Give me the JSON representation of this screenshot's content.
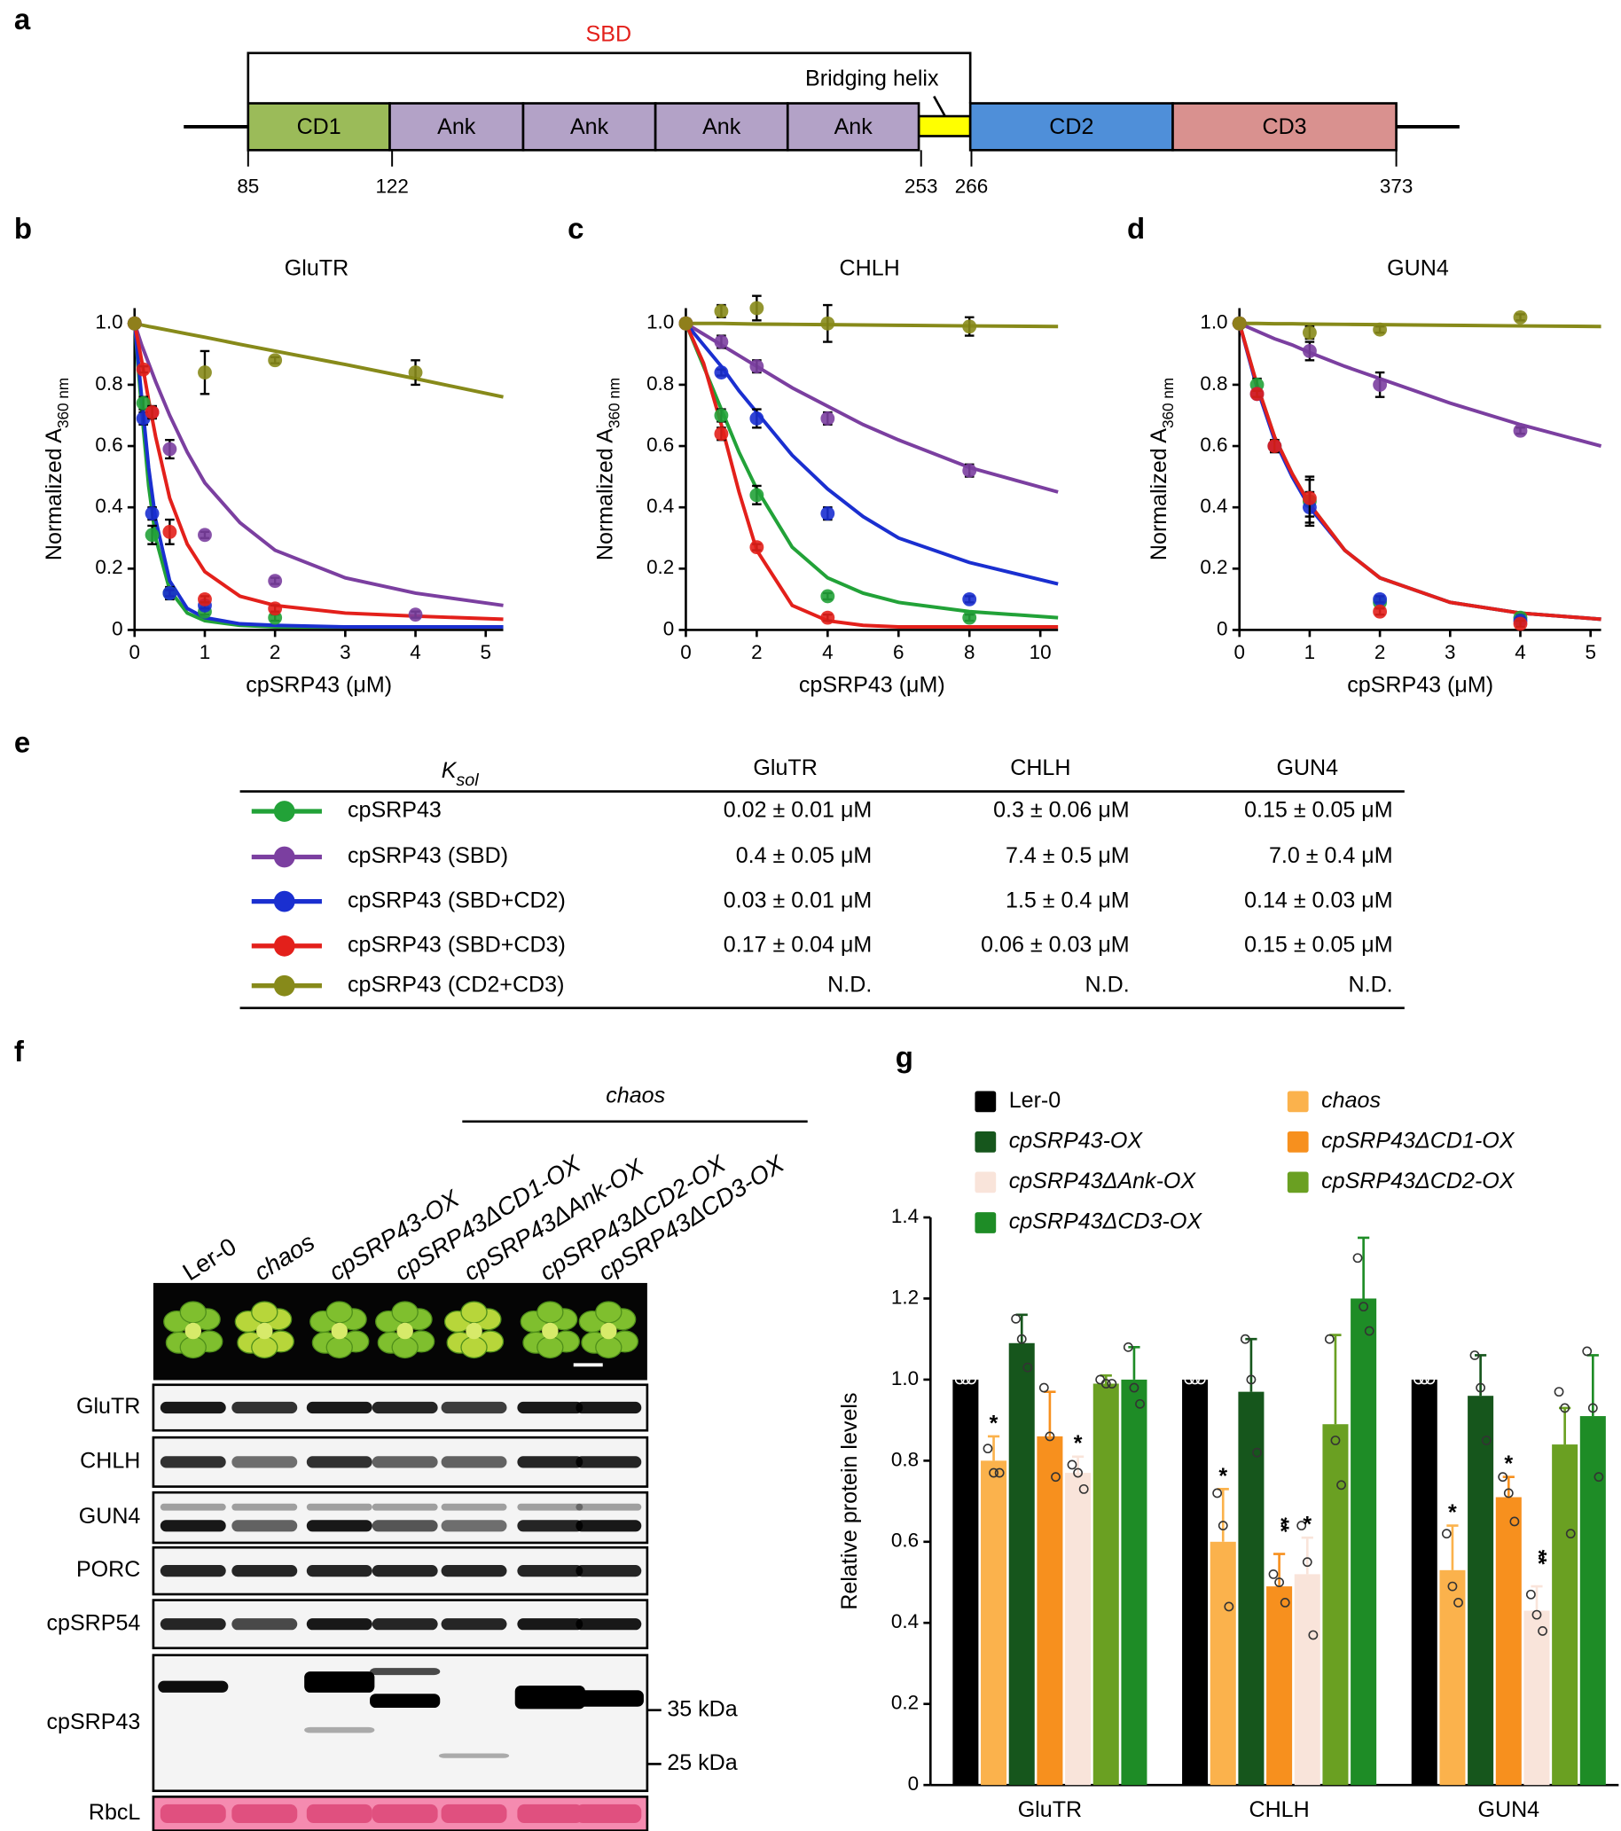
{
  "panel_labels": [
    "a",
    "b",
    "c",
    "d",
    "e",
    "f",
    "g"
  ],
  "domain_diagram": {
    "region_label": "SBD",
    "helix_label": "Bridging helix",
    "domains": [
      "CD1",
      "Ank",
      "Ank",
      "Ank",
      "Ank",
      "CD2",
      "CD3"
    ],
    "positions": [
      85,
      122,
      253,
      266,
      373
    ]
  },
  "chart_data": [
    {
      "type": "scatter",
      "title": "GluTR",
      "x_label": "cpSRP43 (μM)",
      "y_label": {
        "text": "Normalized A",
        "subscript": "360 nm"
      },
      "xlim": [
        0,
        5.25
      ],
      "ylim": [
        0,
        1.05
      ],
      "xticks": [
        0,
        1,
        2,
        3,
        4,
        5
      ],
      "yticks": [
        0,
        0.2,
        0.4,
        0.6,
        0.8,
        {
          "value": 1,
          "label": "1.0"
        }
      ],
      "fit_x": [
        0,
        0.1,
        0.2,
        0.3,
        0.5,
        0.75,
        1,
        1.5,
        2,
        3,
        4,
        5.25
      ],
      "series": [
        {
          "color": "#22a238",
          "x": [
            0,
            0.125,
            0.25,
            0.5,
            1,
            2
          ],
          "values": [
            1,
            0.74,
            0.31,
            0.12,
            0.06,
            0.04
          ],
          "errors": [
            0,
            0.02,
            0.03,
            0.02,
            0.01,
            0.01
          ],
          "fit": [
            1,
            0.72,
            0.47,
            0.3,
            0.13,
            0.055,
            0.03,
            0.015,
            0.01,
            0.01,
            0.01,
            0.01
          ]
        },
        {
          "color": "#7b3fa0",
          "x": [
            0,
            0.25,
            0.5,
            1,
            2,
            4
          ],
          "values": [
            1,
            0.71,
            0.59,
            0.31,
            0.16,
            0.05
          ],
          "errors": [
            0,
            0.02,
            0.03,
            0.01,
            0.01,
            0.01
          ],
          "fit": [
            1,
            0.93,
            0.87,
            0.81,
            0.7,
            0.58,
            0.48,
            0.35,
            0.26,
            0.17,
            0.12,
            0.08
          ]
        },
        {
          "color": "#1a2fd0",
          "x": [
            0,
            0.125,
            0.25,
            0.5,
            1
          ],
          "values": [
            1,
            0.69,
            0.38,
            0.12,
            0.08
          ],
          "errors": [
            0,
            0.02,
            0.02,
            0.01,
            0.01
          ],
          "fit": [
            1,
            0.76,
            0.53,
            0.36,
            0.16,
            0.07,
            0.04,
            0.02,
            0.015,
            0.01,
            0.01,
            0.01
          ]
        },
        {
          "color": "#e3201b",
          "x": [
            0,
            0.125,
            0.25,
            0.5,
            1,
            2
          ],
          "values": [
            1,
            0.85,
            0.71,
            0.32,
            0.1,
            0.07
          ],
          "errors": [
            0,
            0.01,
            0.02,
            0.04,
            0.01,
            0.01
          ],
          "fit": [
            1,
            0.88,
            0.75,
            0.63,
            0.43,
            0.28,
            0.19,
            0.11,
            0.08,
            0.055,
            0.045,
            0.035
          ]
        },
        {
          "color": "#878a1a",
          "x": [
            0,
            1,
            2,
            4
          ],
          "values": [
            1,
            0.84,
            0.88,
            0.84
          ],
          "errors": [
            0,
            0.07,
            0.01,
            0.04
          ],
          "fit": [
            1,
            0.995,
            0.99,
            0.986,
            0.977,
            0.966,
            0.955,
            0.932,
            0.91,
            0.866,
            0.82,
            0.76
          ]
        }
      ]
    },
    {
      "type": "scatter",
      "title": "CHLH",
      "x_label": "cpSRP43 (μM)",
      "y_label": {
        "text": "Normalized A",
        "subscript": "360 nm"
      },
      "xlim": [
        0,
        10.5
      ],
      "ylim": [
        0,
        1.05
      ],
      "xticks": [
        0,
        2,
        4,
        6,
        8,
        10
      ],
      "yticks": [
        0,
        0.2,
        0.4,
        0.6,
        0.8,
        {
          "value": 1,
          "label": "1.0"
        }
      ],
      "fit_x": [
        0,
        0.5,
        1,
        1.5,
        2,
        3,
        4,
        5,
        6,
        8,
        10.5
      ],
      "series": [
        {
          "color": "#22a238",
          "x": [
            0,
            1,
            2,
            4,
            8
          ],
          "values": [
            1,
            0.7,
            0.44,
            0.11,
            0.04
          ],
          "errors": [
            0,
            0.02,
            0.03,
            0.01,
            0.01
          ],
          "fit": [
            1,
            0.86,
            0.72,
            0.58,
            0.46,
            0.27,
            0.17,
            0.12,
            0.09,
            0.06,
            0.04
          ]
        },
        {
          "color": "#7b3fa0",
          "x": [
            0,
            1,
            2,
            4,
            8
          ],
          "values": [
            1,
            0.94,
            0.86,
            0.69,
            0.52
          ],
          "errors": [
            0,
            0.02,
            0.02,
            0.02,
            0.02
          ],
          "fit": [
            1,
            0.965,
            0.93,
            0.895,
            0.86,
            0.79,
            0.73,
            0.67,
            0.62,
            0.53,
            0.45
          ]
        },
        {
          "color": "#1a2fd0",
          "x": [
            0,
            1,
            2,
            4,
            8
          ],
          "values": [
            1,
            0.84,
            0.69,
            0.38,
            0.1
          ],
          "errors": [
            0,
            0.01,
            0.03,
            0.02,
            0.01
          ],
          "fit": [
            1,
            0.93,
            0.86,
            0.78,
            0.71,
            0.57,
            0.46,
            0.37,
            0.3,
            0.22,
            0.15
          ]
        },
        {
          "color": "#e3201b",
          "x": [
            0,
            1,
            2,
            4
          ],
          "values": [
            1,
            0.64,
            0.27,
            0.04
          ],
          "errors": [
            0,
            0.02,
            0.01,
            0.01
          ],
          "fit": [
            1,
            0.87,
            0.67,
            0.45,
            0.26,
            0.08,
            0.03,
            0.015,
            0.01,
            0.01,
            0.01
          ]
        },
        {
          "color": "#878a1a",
          "x": [
            0,
            1,
            2,
            4,
            8
          ],
          "values": [
            1,
            1.04,
            1.05,
            1,
            0.99
          ],
          "errors": [
            0,
            0.02,
            0.04,
            0.06,
            0.03
          ],
          "fit": [
            1,
            1,
            1,
            0.999,
            0.998,
            0.997,
            0.996,
            0.995,
            0.994,
            0.992,
            0.99
          ]
        }
      ]
    },
    {
      "type": "scatter",
      "title": "GUN4",
      "x_label": "cpSRP43 (μM)",
      "y_label": {
        "text": "Normalized A",
        "subscript": "360 nm"
      },
      "xlim": [
        0,
        5.15
      ],
      "ylim": [
        0,
        1.05
      ],
      "xticks": [
        0,
        1,
        2,
        3,
        4,
        5
      ],
      "yticks": [
        0,
        0.2,
        0.4,
        0.6,
        0.8,
        {
          "value": 1,
          "label": "1.0"
        }
      ],
      "fit_x": [
        0,
        0.25,
        0.5,
        0.75,
        1,
        1.5,
        2,
        3,
        4,
        5.15
      ],
      "series": [
        {
          "color": "#22a238",
          "x": [
            0,
            0.25,
            0.5,
            1,
            2,
            4
          ],
          "values": [
            1,
            0.8,
            0.6,
            0.42,
            0.09,
            0.04
          ],
          "errors": [
            0,
            0.02,
            0.02,
            0.08,
            0.02,
            0.01
          ],
          "fit": [
            1,
            0.8,
            0.63,
            0.51,
            0.41,
            0.26,
            0.17,
            0.09,
            0.055,
            0.035
          ]
        },
        {
          "color": "#7b3fa0",
          "x": [
            0,
            1,
            2,
            4
          ],
          "values": [
            1,
            0.91,
            0.8,
            0.65
          ],
          "errors": [
            0,
            0.03,
            0.04,
            0.01
          ],
          "fit": [
            1,
            0.975,
            0.95,
            0.93,
            0.905,
            0.86,
            0.82,
            0.74,
            0.67,
            0.6
          ]
        },
        {
          "color": "#1a2fd0",
          "x": [
            0,
            0.25,
            0.5,
            1,
            2,
            4
          ],
          "values": [
            1,
            0.77,
            0.6,
            0.4,
            0.1,
            0.03
          ],
          "errors": [
            0,
            0.01,
            0.02,
            0.05,
            0.01,
            0.01
          ],
          "fit": [
            1,
            0.79,
            0.62,
            0.5,
            0.4,
            0.26,
            0.17,
            0.09,
            0.055,
            0.035
          ]
        },
        {
          "color": "#e3201b",
          "x": [
            0,
            0.25,
            0.5,
            1,
            2,
            4
          ],
          "values": [
            1,
            0.77,
            0.6,
            0.43,
            0.06,
            0.02
          ],
          "errors": [
            0,
            0.01,
            0.02,
            0.06,
            0.01,
            0.01
          ],
          "fit": [
            1,
            0.8,
            0.63,
            0.51,
            0.41,
            0.26,
            0.17,
            0.09,
            0.055,
            0.035
          ]
        },
        {
          "color": "#878a1a",
          "x": [
            0,
            1,
            2,
            4
          ],
          "values": [
            1,
            0.97,
            0.98,
            1.02
          ],
          "errors": [
            0,
            0.02,
            0.01,
            0.01
          ],
          "fit": [
            1,
            1,
            0.999,
            0.999,
            0.998,
            0.997,
            0.996,
            0.994,
            0.992,
            0.99
          ]
        }
      ]
    },
    {
      "type": "bar",
      "y_label": "Relative protein levels",
      "categories": [
        "GluTR",
        "CHLH",
        "GUN4"
      ],
      "ylim": [
        0,
        1.4
      ],
      "yticks": [
        0,
        0.2,
        0.4,
        0.6,
        0.8,
        {
          "value": 1,
          "label": "1.0"
        },
        1.2,
        1.4
      ],
      "series": [
        {
          "name": "Ler-0",
          "color": "#000000",
          "values": [
            1,
            1,
            1
          ],
          "errors": [
            0,
            0,
            0
          ],
          "points": [
            [
              1,
              1,
              1
            ],
            [
              1,
              1,
              1
            ],
            [
              1,
              1,
              1
            ]
          ]
        },
        {
          "name": "chaos",
          "color": "#fbb24c",
          "values": [
            0.8,
            0.6,
            0.53
          ],
          "errors": [
            0.06,
            0.13,
            0.11
          ],
          "points": [
            [
              0.83,
              0.77,
              0.77
            ],
            [
              0.72,
              0.64,
              0.44
            ],
            [
              0.62,
              0.49,
              0.45
            ]
          ],
          "annotations": [
            "*",
            "*",
            "*"
          ]
        },
        {
          "name": "cpSRP43-OX",
          "color": "#16561c",
          "values": [
            1.09,
            0.97,
            0.96
          ],
          "errors": [
            0.07,
            0.13,
            0.1
          ],
          "points": [
            [
              1.15,
              1.1,
              1.03
            ],
            [
              1.1,
              1,
              0.82
            ],
            [
              1.06,
              0.98,
              0.85
            ]
          ]
        },
        {
          "name": "cpSRP43ΔCD1-OX",
          "color": "#f7901e",
          "values": [
            0.86,
            0.49,
            0.71
          ],
          "errors": [
            0.11,
            0.08,
            0.05
          ],
          "points": [
            [
              0.98,
              0.86,
              0.76
            ],
            [
              0.52,
              0.5,
              0.45
            ],
            [
              0.76,
              0.72,
              0.65
            ]
          ],
          "annotations": [
            null,
            "**",
            "*"
          ]
        },
        {
          "name": "cpSRP43ΔAnk-OX",
          "color": "#f9e4da",
          "values": [
            0.77,
            0.52,
            0.43
          ],
          "errors": [
            0.04,
            0.09,
            0.06
          ],
          "points": [
            [
              0.79,
              0.77,
              0.73
            ],
            [
              0.64,
              0.55,
              0.37
            ],
            [
              0.47,
              0.42,
              0.38
            ]
          ],
          "annotations": [
            "*",
            "*",
            "**"
          ]
        },
        {
          "name": "cpSRP43ΔCD2-OX",
          "color": "#6aa022",
          "values": [
            0.99,
            0.89,
            0.84
          ],
          "errors": [
            0.02,
            0.22,
            0.09
          ],
          "points": [
            [
              1,
              0.99,
              0.99
            ],
            [
              1.1,
              0.85,
              0.74
            ],
            [
              0.97,
              0.93,
              0.62
            ]
          ]
        },
        {
          "name": "cpSRP43ΔCD3-OX",
          "color": "#1e8c26",
          "values": [
            1,
            1.2,
            0.91
          ],
          "errors": [
            0.08,
            0.15,
            0.15
          ],
          "points": [
            [
              1.08,
              0.98,
              0.94
            ],
            [
              1.3,
              1.18,
              1.12
            ],
            [
              1.07,
              0.93,
              0.76
            ]
          ]
        }
      ]
    }
  ],
  "table": {
    "symbol": {
      "main": "K",
      "subscript": "sol"
    },
    "columns": [
      "GluTR",
      "CHLH",
      "GUN4"
    ],
    "rows": [
      {
        "name": "cpSRP43",
        "color": "#22a238",
        "cells": [
          "0.02 ± 0.01 μM",
          "0.3 ± 0.06 μM",
          "0.15 ± 0.05 μM"
        ]
      },
      {
        "name": "cpSRP43 (SBD)",
        "color": "#7b3fa0",
        "cells": [
          "0.4 ± 0.05 μM",
          "7.4 ± 0.5 μM",
          "7.0 ± 0.4 μM"
        ]
      },
      {
        "name": "cpSRP43 (SBD+CD2)",
        "color": "#1a2fd0",
        "cells": [
          "0.03 ± 0.01 μM",
          "1.5 ± 0.4 μM",
          "0.14 ± 0.03 μM"
        ]
      },
      {
        "name": "cpSRP43 (SBD+CD3)",
        "color": "#e3201b",
        "cells": [
          "0.17 ± 0.04 μM",
          "0.06 ± 0.03 μM",
          "0.15 ± 0.05 μM"
        ]
      },
      {
        "name": "cpSRP43 (CD2+CD3)",
        "color": "#878a1a",
        "cells": [
          "N.D.",
          "N.D.",
          "N.D."
        ]
      }
    ]
  },
  "blot": {
    "group_label": "chaos",
    "lanes": [
      "Ler-0",
      "chaos",
      "cpSRP43-OX",
      "cpSRP43ΔCD1-OX",
      "cpSRP43ΔAnk-OX",
      "cpSRP43ΔCD2-OX",
      "cpSRP43ΔCD3-OX"
    ],
    "rows": [
      "GluTR",
      "CHLH",
      "GUN4",
      "PORC",
      "cpSRP54",
      "cpSRP43",
      "RbcL"
    ],
    "markers": [
      "35 kDa",
      "25 kDa"
    ]
  }
}
